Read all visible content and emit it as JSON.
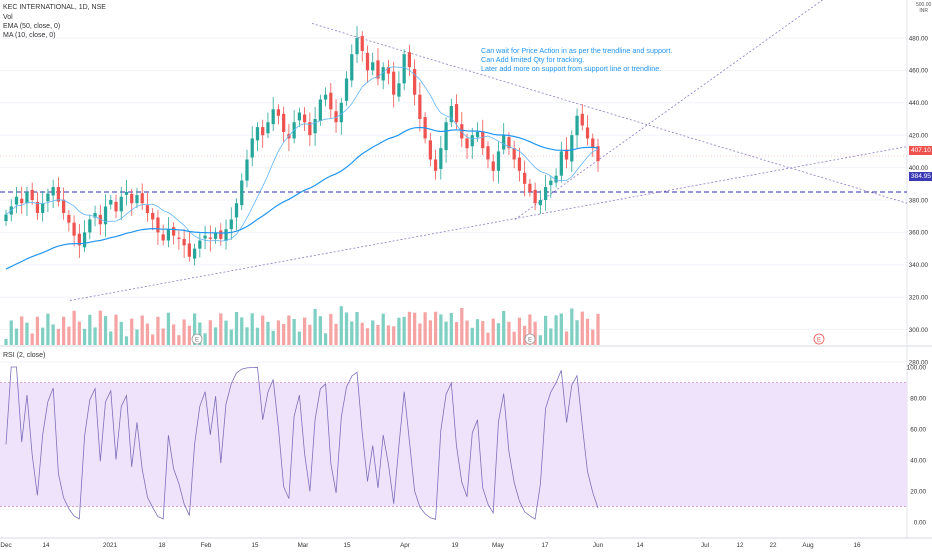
{
  "header": {
    "symbol_line": "KEC INTERNATIONAL, 1D, NSE",
    "vol_label": "Vol",
    "ema_label": "EMA (50, close, 0)",
    "ma_label": "MA (10, close, 0)",
    "rsi_label": "RSI (2, close)",
    "currency": "INR",
    "currency_top": "500.00"
  },
  "note": [
    "Can wait for Price Action in as per the trendline and support.",
    "Can Add limited Qty for tracking.",
    "Later add more on support from support line or trendline."
  ],
  "price_tags": {
    "last": "407.10",
    "support": "384.95"
  },
  "colors": {
    "up": "#26a69a",
    "down": "#ef5350",
    "up_vol": "#7fcfc3",
    "down_vol": "#f5a3a3",
    "ema": "#2196f3",
    "ma": "#64b5f6",
    "trend": "#8e7cc3",
    "support": "#2c2cb0",
    "rsi_line": "#7e6fbb",
    "rsi_band": "#efe3fb",
    "last_tag": "#ef5350",
    "support_tag": "#3a3ab5"
  },
  "chart_data": {
    "type": "candlestick",
    "price_axis": {
      "ticks": [
        480,
        460,
        440,
        420,
        400,
        380,
        360,
        340,
        320,
        300,
        280
      ],
      "labels": [
        "480.00",
        "460.00",
        "440.00",
        "420.00",
        "400.00",
        "380.00",
        "360.00",
        "340.00",
        "320.00",
        "300.00",
        "280.00"
      ]
    },
    "rsi_axis": {
      "ticks": [
        100,
        80,
        60,
        40,
        20,
        0
      ],
      "labels": [
        "100.00",
        "80.00",
        "60.00",
        "40.00",
        "20.00",
        "0.00"
      ],
      "upper": 90,
      "lower": 10
    },
    "x_axis": {
      "labels": [
        "Dec",
        "14",
        "2021",
        "18",
        "Feb",
        "15",
        "Mar",
        "15",
        "Apr",
        "19",
        "May",
        "17",
        "Jun",
        "14",
        "Jul",
        "12",
        "22",
        "Aug",
        "16"
      ]
    },
    "earnings_markers": [
      "E",
      "E",
      "E"
    ],
    "support_level": 384.95,
    "last_price": 407.1,
    "series_close": [
      371,
      376,
      382,
      378,
      385,
      380,
      372,
      378,
      384,
      388,
      379,
      372,
      366,
      358,
      352,
      360,
      368,
      372,
      365,
      376,
      380,
      373,
      382,
      385,
      378,
      383,
      378,
      372,
      368,
      360,
      355,
      362,
      358,
      356,
      352,
      345,
      350,
      355,
      358,
      356,
      360,
      356,
      362,
      368,
      378,
      392,
      405,
      418,
      425,
      420,
      428,
      436,
      432,
      422,
      418,
      428,
      434,
      428,
      420,
      430,
      442,
      445,
      436,
      428,
      440,
      455,
      470,
      480,
      472,
      460,
      465,
      455,
      462,
      458,
      445,
      452,
      470,
      462,
      445,
      430,
      418,
      405,
      398,
      412,
      428,
      438,
      428,
      418,
      412,
      420,
      422,
      412,
      405,
      398,
      410,
      420,
      412,
      405,
      398,
      390,
      385,
      378,
      380,
      388,
      392,
      395,
      410,
      405,
      420,
      432,
      426,
      418,
      412,
      404
    ]
  }
}
